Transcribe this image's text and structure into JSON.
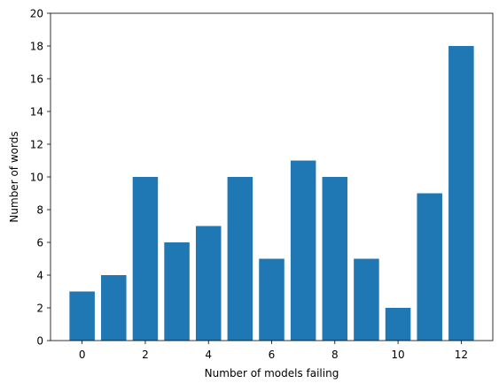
{
  "chart_data": {
    "type": "bar",
    "title": "",
    "xlabel": "Number of models failing",
    "ylabel": "Number of words",
    "x": [
      0,
      1,
      2,
      3,
      4,
      5,
      6,
      7,
      8,
      9,
      10,
      11,
      12
    ],
    "values": [
      3,
      4,
      10,
      6,
      7,
      10,
      5,
      11,
      10,
      5,
      2,
      9,
      18
    ],
    "xlim": [
      -1,
      13
    ],
    "ylim": [
      0,
      20
    ],
    "xticks": [
      0,
      2,
      4,
      6,
      8,
      10,
      12
    ],
    "yticks": [
      0,
      2,
      4,
      6,
      8,
      10,
      12,
      14,
      16,
      18,
      20
    ],
    "grid": false,
    "bar_color": "#1f77b4"
  }
}
